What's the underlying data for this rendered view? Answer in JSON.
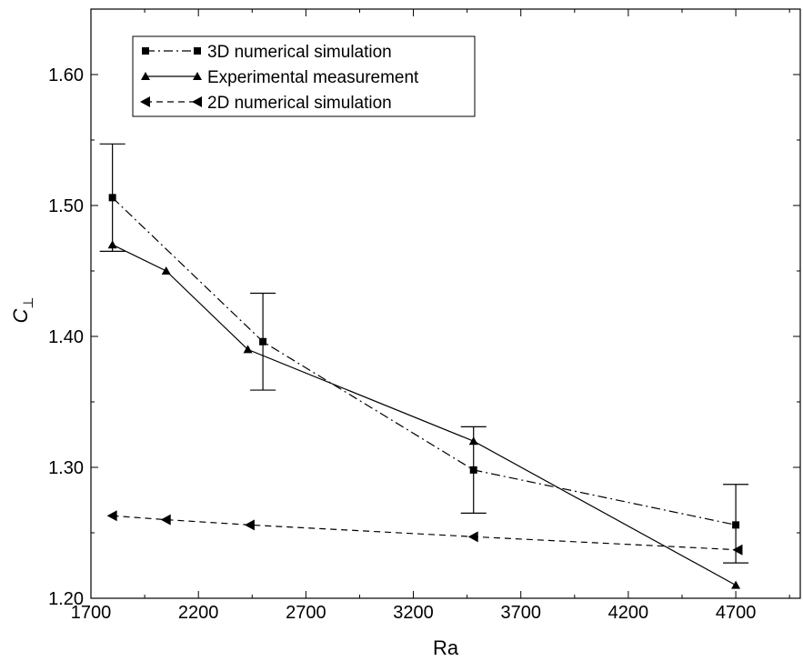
{
  "chart_data": {
    "type": "line",
    "xlabel": "Ra",
    "ylabel": "C",
    "ylabel_sub": "⊥",
    "xlim": [
      1700,
      5000
    ],
    "ylim": [
      1.2,
      1.65
    ],
    "x_ticks": [
      1700,
      2200,
      2700,
      3200,
      3700,
      4200,
      4700
    ],
    "x_tick_labels": [
      "1700",
      "2200",
      "2700",
      "3200",
      "3700",
      "4200",
      "4700"
    ],
    "y_ticks": [
      1.2,
      1.3,
      1.4,
      1.5,
      1.6
    ],
    "y_tick_labels": [
      "1.20",
      "1.30",
      "1.40",
      "1.50",
      "1.60"
    ],
    "grid": false,
    "legend_position": "top-left",
    "series": [
      {
        "name": "3D numerical simulation",
        "marker": "square",
        "line": "dash-dot",
        "x": [
          1800,
          2500,
          3480,
          4700
        ],
        "y": [
          1.506,
          1.396,
          1.298,
          1.256
        ],
        "error_low": [
          1.465,
          1.359,
          1.265,
          1.227
        ],
        "error_high": [
          1.547,
          1.433,
          1.331,
          1.287
        ]
      },
      {
        "name": "Experimental measurement",
        "marker": "triangle-up",
        "line": "solid",
        "x": [
          1800,
          2050,
          2430,
          3480,
          4700
        ],
        "y": [
          1.47,
          1.45,
          1.39,
          1.32,
          1.21
        ]
      },
      {
        "name": "2D numerical simulation",
        "marker": "triangle-left",
        "line": "dashed",
        "x": [
          1800,
          2050,
          2440,
          3480,
          4710
        ],
        "y": [
          1.263,
          1.26,
          1.256,
          1.247,
          1.237
        ]
      }
    ]
  }
}
